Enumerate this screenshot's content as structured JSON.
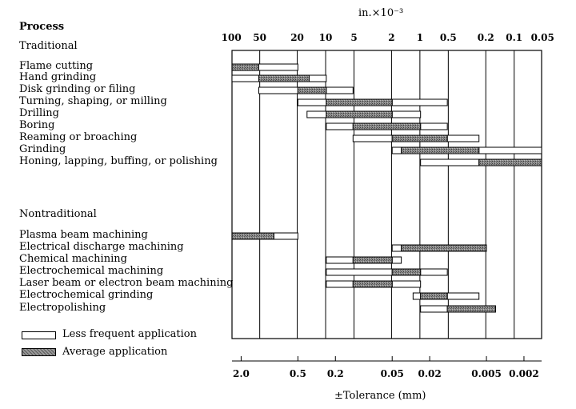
{
  "chart_data": {
    "type": "bar",
    "title": "",
    "heading": "Process",
    "top_axis_unit": "in.×10⁻³",
    "top_ticks": [
      "100",
      "50",
      "20",
      "10",
      "5",
      "2",
      "1",
      "0.5",
      "0.2",
      "0.1",
      "0.05"
    ],
    "bottom_ticks": [
      "2.0",
      "0.5",
      "0.2",
      "0.05",
      "0.02",
      "0.005",
      "0.002"
    ],
    "xlabel": "±Tolerance (mm)",
    "sections": [
      {
        "label": "Traditional",
        "processes": [
          {
            "name": "Flame cutting",
            "average": [
              2.5,
              1.3
            ],
            "less_frequent": [
              [
                1.3,
                0.5
              ]
            ]
          },
          {
            "name": "Hand grinding",
            "average": [
              1.3,
              0.38
            ],
            "less_frequent": [
              [
                2.5,
                1.3
              ],
              [
                0.38,
                0.25
              ]
            ]
          },
          {
            "name": "Disk grinding or filing",
            "average": [
              0.5,
              0.25
            ],
            "less_frequent": [
              [
                1.3,
                0.5
              ],
              [
                0.25,
                0.13
              ]
            ]
          },
          {
            "name": "Turning, shaping, or milling",
            "average": [
              0.25,
              0.05
            ],
            "less_frequent": [
              [
                0.5,
                0.25
              ],
              [
                0.05,
                0.013
              ]
            ]
          },
          {
            "name": "Drilling",
            "average": [
              0.25,
              0.05
            ],
            "less_frequent": [
              [
                0.4,
                0.25
              ],
              [
                0.05,
                0.025
              ]
            ]
          },
          {
            "name": "Boring",
            "average": [
              0.13,
              0.025
            ],
            "less_frequent": [
              [
                0.25,
                0.13
              ],
              [
                0.025,
                0.013
              ]
            ]
          },
          {
            "name": "Reaming or broaching",
            "average": [
              0.05,
              0.013
            ],
            "less_frequent": [
              [
                0.13,
                0.05
              ],
              [
                0.013,
                0.006
              ]
            ]
          },
          {
            "name": "Grinding",
            "average": [
              0.04,
              0.006
            ],
            "less_frequent": [
              [
                0.05,
                0.04
              ],
              [
                0.006,
                0.0013
              ]
            ]
          },
          {
            "name": "Honing, lapping, buffing, or polishing",
            "average": [
              0.006,
              0.0013
            ],
            "less_frequent": [
              [
                0.025,
                0.006
              ]
            ]
          }
        ]
      },
      {
        "label": "Nontraditional",
        "processes": [
          {
            "name": "Plasma beam machining",
            "average": [
              2.5,
              0.9
            ],
            "less_frequent": [
              [
                0.9,
                0.5
              ]
            ]
          },
          {
            "name": "Electrical discharge machining",
            "average": [
              0.04,
              0.005
            ],
            "less_frequent": [
              [
                0.05,
                0.04
              ]
            ]
          },
          {
            "name": "Chemical machining",
            "average": [
              0.13,
              0.05
            ],
            "less_frequent": [
              [
                0.25,
                0.13
              ],
              [
                0.05,
                0.04
              ]
            ]
          },
          {
            "name": "Electrochemical machining",
            "average": [
              0.05,
              0.025
            ],
            "less_frequent": [
              [
                0.25,
                0.05
              ],
              [
                0.025,
                0.013
              ]
            ]
          },
          {
            "name": "Laser beam or electron beam machining",
            "average": [
              0.13,
              0.05
            ],
            "less_frequent": [
              [
                0.25,
                0.13
              ],
              [
                0.05,
                0.025
              ]
            ]
          },
          {
            "name": "Electrochemical grinding",
            "average": [
              0.025,
              0.013
            ],
            "less_frequent": [
              [
                0.03,
                0.025
              ],
              [
                0.013,
                0.006
              ]
            ]
          },
          {
            "name": "Electropolishing",
            "average": [
              0.013,
              0.004
            ],
            "less_frequent": [
              [
                0.025,
                0.013
              ]
            ]
          }
        ]
      }
    ],
    "legend": [
      {
        "label": "Less frequent application",
        "fill": "#ffffff"
      },
      {
        "label": "Average application",
        "fill": "#7f7f7f"
      }
    ],
    "x_scale": "log",
    "xlim_mm": [
      2.5,
      0.0013
    ]
  }
}
